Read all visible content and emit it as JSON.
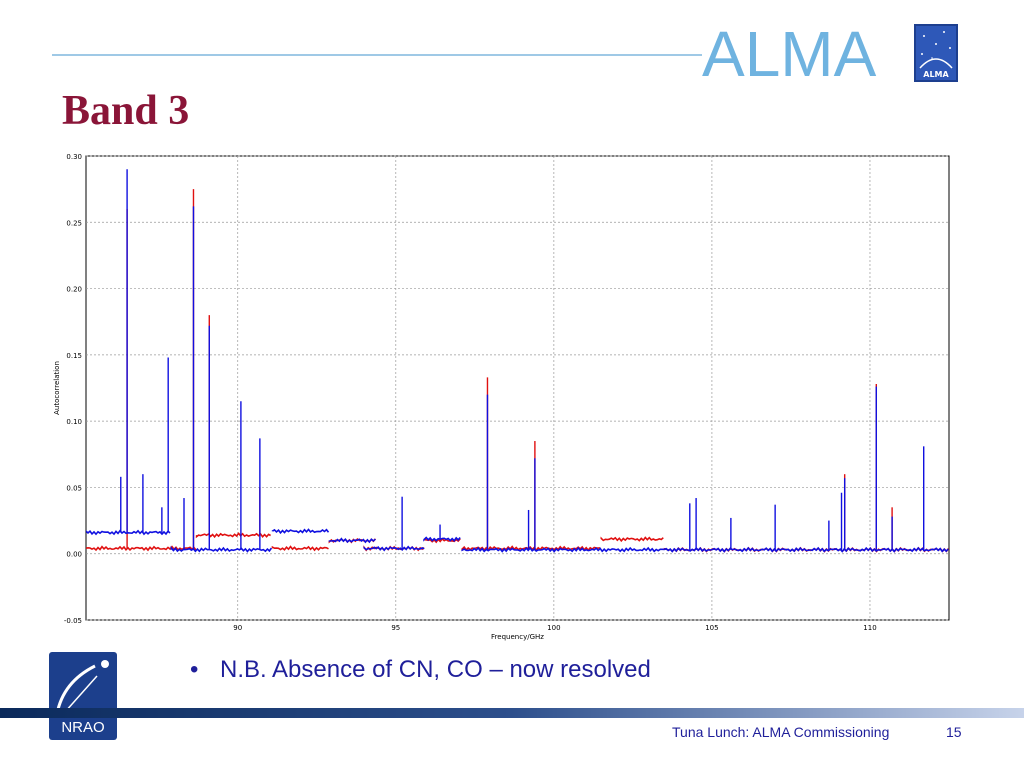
{
  "slide": {
    "brand": "ALMA",
    "brand_logo_text": "ALMA",
    "title": "Band 3",
    "bullet": "N.B. Absence of CN, CO – now resolved",
    "bullet_marker": "•",
    "footer": "Tuna Lunch: ALMA Commissioning",
    "page_number": "15",
    "logo_text": "NRAO",
    "colors": {
      "title": "#8a1538",
      "accent": "#6fb3e0",
      "text": "#1f1f9a",
      "series_red": "#e01010",
      "series_blue": "#1010e0"
    }
  },
  "chart_data": {
    "type": "line",
    "title": "",
    "xlabel": "Frequency/GHz",
    "ylabel": "Autocorrelation",
    "xlim": [
      85.2,
      112.5
    ],
    "ylim": [
      -0.05,
      0.3
    ],
    "xticks": [
      90,
      95,
      100,
      105,
      110
    ],
    "yticks": [
      -0.05,
      0.0,
      0.05,
      0.1,
      0.15,
      0.2,
      0.25,
      0.3
    ],
    "ytick_labels": [
      "-0.05",
      "0.00",
      "0.05",
      "0.10",
      "0.15",
      "0.20",
      "0.25",
      "0.30"
    ],
    "grid": true,
    "series": [
      {
        "color": "#e01010",
        "baselines": [
          {
            "x": [
              85.2,
              88.7
            ],
            "y": 0.004
          },
          {
            "x": [
              88.7,
              91.1
            ],
            "y": 0.014
          },
          {
            "x": [
              91.1,
              92.9
            ],
            "y": 0.004
          },
          {
            "x": [
              92.9,
              94.4
            ],
            "y": 0.01
          },
          {
            "x": [
              94.0,
              95.9
            ],
            "y": 0.004
          },
          {
            "x": [
              95.9,
              97.1
            ],
            "y": 0.01
          },
          {
            "x": [
              97.1,
              101.5
            ],
            "y": 0.004
          },
          {
            "x": [
              101.5,
              103.5
            ],
            "y": 0.011
          },
          {
            "x": [
              103.5,
              112.5
            ],
            "y": 0.003
          }
        ],
        "peaks": [
          {
            "x": 86.5,
            "y": 0.26
          },
          {
            "x": 88.6,
            "y": 0.275
          },
          {
            "x": 89.1,
            "y": 0.18
          },
          {
            "x": 90.7,
            "y": 0.05
          },
          {
            "x": 97.9,
            "y": 0.133
          },
          {
            "x": 99.4,
            "y": 0.085
          },
          {
            "x": 109.2,
            "y": 0.06
          },
          {
            "x": 110.2,
            "y": 0.128
          },
          {
            "x": 110.7,
            "y": 0.035
          }
        ]
      },
      {
        "color": "#1010e0",
        "baselines": [
          {
            "x": [
              85.2,
              87.9
            ],
            "y": 0.016
          },
          {
            "x": [
              87.9,
              91.1
            ],
            "y": 0.003
          },
          {
            "x": [
              91.1,
              92.9
            ],
            "y": 0.017
          },
          {
            "x": [
              92.9,
              94.4
            ],
            "y": 0.01
          },
          {
            "x": [
              94.0,
              95.9
            ],
            "y": 0.004
          },
          {
            "x": [
              95.9,
              97.1
            ],
            "y": 0.011
          },
          {
            "x": [
              97.1,
              112.5
            ],
            "y": 0.003
          }
        ],
        "peaks": [
          {
            "x": 86.5,
            "y": 0.29
          },
          {
            "x": 87.8,
            "y": 0.148
          },
          {
            "x": 88.6,
            "y": 0.262
          },
          {
            "x": 89.1,
            "y": 0.172
          },
          {
            "x": 90.1,
            "y": 0.115
          },
          {
            "x": 90.7,
            "y": 0.087
          },
          {
            "x": 86.3,
            "y": 0.058
          },
          {
            "x": 87.0,
            "y": 0.06
          },
          {
            "x": 87.6,
            "y": 0.035
          },
          {
            "x": 88.3,
            "y": 0.042
          },
          {
            "x": 95.2,
            "y": 0.043
          },
          {
            "x": 96.4,
            "y": 0.022
          },
          {
            "x": 97.9,
            "y": 0.12
          },
          {
            "x": 99.2,
            "y": 0.033
          },
          {
            "x": 99.4,
            "y": 0.072
          },
          {
            "x": 104.3,
            "y": 0.038
          },
          {
            "x": 104.5,
            "y": 0.042
          },
          {
            "x": 105.6,
            "y": 0.027
          },
          {
            "x": 107.0,
            "y": 0.037
          },
          {
            "x": 108.7,
            "y": 0.025
          },
          {
            "x": 109.1,
            "y": 0.046
          },
          {
            "x": 109.2,
            "y": 0.057
          },
          {
            "x": 110.2,
            "y": 0.126
          },
          {
            "x": 110.7,
            "y": 0.028
          },
          {
            "x": 111.7,
            "y": 0.081
          }
        ]
      }
    ]
  }
}
